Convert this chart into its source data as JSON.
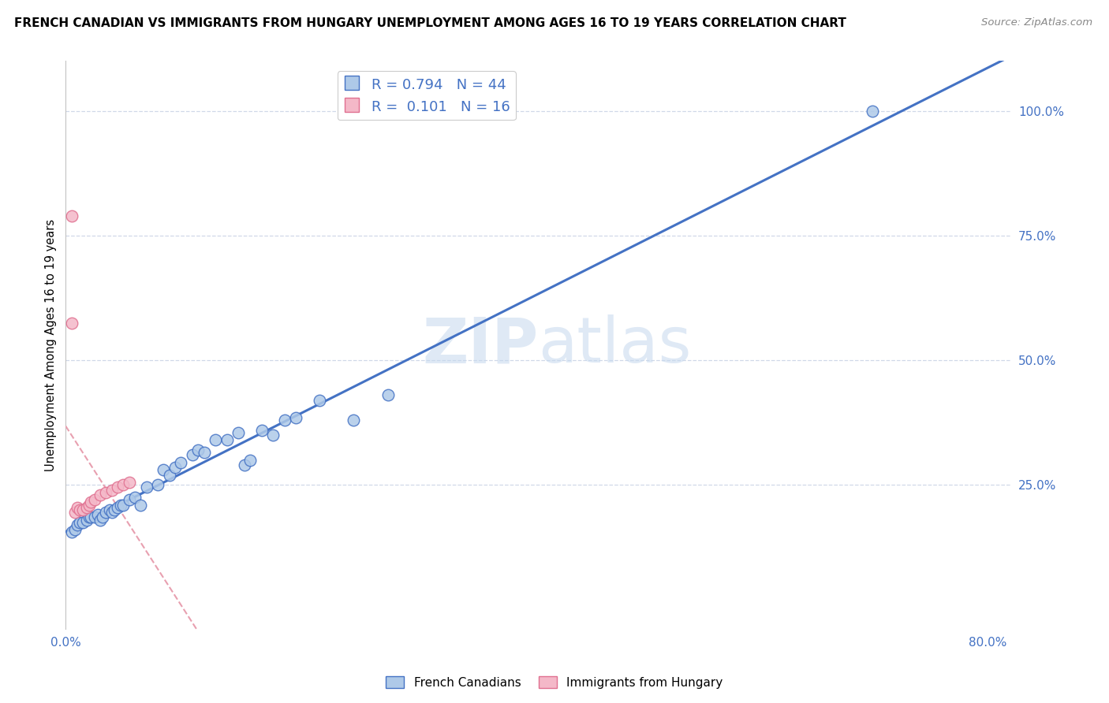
{
  "title": "FRENCH CANADIAN VS IMMIGRANTS FROM HUNGARY UNEMPLOYMENT AMONG AGES 16 TO 19 YEARS CORRELATION CHART",
  "source": "Source: ZipAtlas.com",
  "ylabel": "Unemployment Among Ages 16 to 19 years",
  "xlim_min": 0.0,
  "xlim_max": 0.82,
  "ylim_min": -0.04,
  "ylim_max": 1.1,
  "yticks_right": [
    0.25,
    0.5,
    0.75,
    1.0
  ],
  "ytick_right_labels": [
    "25.0%",
    "50.0%",
    "75.0%",
    "100.0%"
  ],
  "blue_fill_color": "#aec9e8",
  "blue_edge_color": "#4472c4",
  "pink_fill_color": "#f4b8c8",
  "pink_edge_color": "#e07090",
  "blue_line_color": "#4472c4",
  "pink_line_color": "#e8a0b0",
  "grid_color": "#d0d8e8",
  "legend_R1": "0.794",
  "legend_N1": "44",
  "legend_R2": "0.101",
  "legend_N2": "16",
  "legend_label1": "French Canadians",
  "legend_label2": "Immigrants from Hungary",
  "watermark": "ZIPatlas",
  "blue_x": [
    0.005,
    0.008,
    0.01,
    0.012,
    0.015,
    0.018,
    0.02,
    0.022,
    0.025,
    0.028,
    0.03,
    0.032,
    0.035,
    0.038,
    0.04,
    0.042,
    0.045,
    0.048,
    0.05,
    0.055,
    0.06,
    0.065,
    0.07,
    0.08,
    0.085,
    0.09,
    0.095,
    0.1,
    0.11,
    0.115,
    0.12,
    0.13,
    0.14,
    0.15,
    0.155,
    0.16,
    0.17,
    0.18,
    0.19,
    0.2,
    0.22,
    0.25,
    0.28,
    0.7
  ],
  "blue_y": [
    0.155,
    0.16,
    0.17,
    0.175,
    0.175,
    0.18,
    0.185,
    0.185,
    0.185,
    0.19,
    0.18,
    0.185,
    0.195,
    0.2,
    0.195,
    0.2,
    0.205,
    0.21,
    0.21,
    0.22,
    0.225,
    0.21,
    0.245,
    0.25,
    0.28,
    0.27,
    0.285,
    0.295,
    0.31,
    0.32,
    0.315,
    0.34,
    0.34,
    0.355,
    0.29,
    0.3,
    0.36,
    0.35,
    0.38,
    0.385,
    0.42,
    0.38,
    0.43,
    1.0
  ],
  "pink_x": [
    0.005,
    0.008,
    0.01,
    0.012,
    0.015,
    0.018,
    0.02,
    0.022,
    0.025,
    0.03,
    0.035,
    0.04,
    0.045,
    0.05,
    0.055,
    0.005
  ],
  "pink_y": [
    0.79,
    0.195,
    0.205,
    0.2,
    0.2,
    0.205,
    0.21,
    0.215,
    0.22,
    0.23,
    0.235,
    0.24,
    0.245,
    0.25,
    0.255,
    0.575
  ]
}
